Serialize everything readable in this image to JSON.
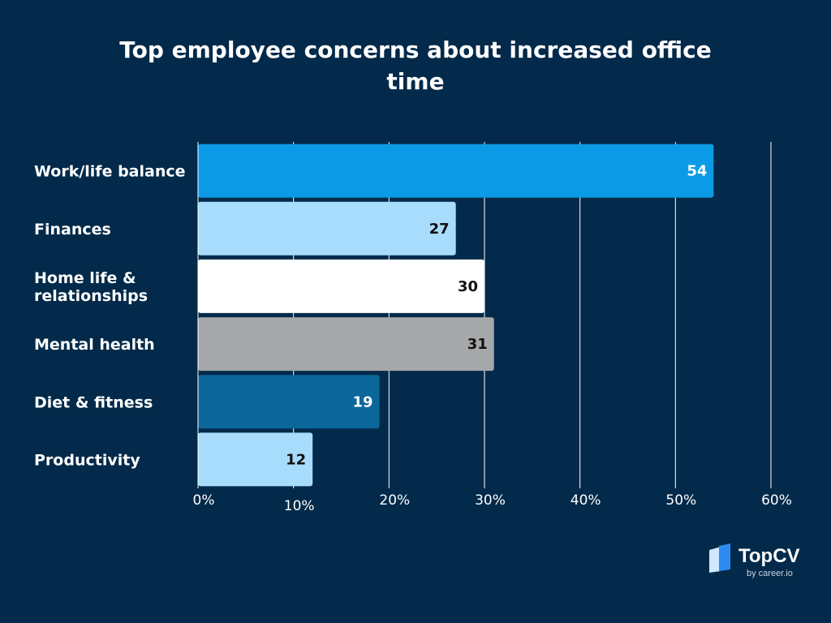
{
  "brand": {
    "name": "TopCV",
    "sub": "by career.io",
    "colors": {
      "logo_back": "#cfe8ff",
      "logo_front": "#2e8cf0"
    }
  },
  "chart_data": {
    "type": "bar",
    "orientation": "horizontal",
    "title_lines": [
      "Top employee concerns about increased office",
      "time"
    ],
    "categories": [
      [
        "Work/life balance"
      ],
      [
        "Finances"
      ],
      [
        "Home life &",
        "relationships"
      ],
      [
        "Mental health"
      ],
      [
        "Diet & fitness"
      ],
      [
        "Productivity"
      ]
    ],
    "values": [
      54,
      27,
      30,
      31,
      19,
      12
    ],
    "value_labels": [
      "54",
      "27",
      "30",
      "31",
      "19",
      "12"
    ],
    "bar_colors": [
      "#0b9be6",
      "#a8dcfc",
      "#ffffff",
      "#a6a7a9",
      "#0b6699",
      "#a8dcfc"
    ],
    "label_colors": [
      "#ffffff",
      "#111111",
      "#111111",
      "#111111",
      "#ffffff",
      "#111111"
    ],
    "x_ticks": [
      0,
      10,
      20,
      30,
      40,
      50,
      60
    ],
    "x_tick_labels": [
      "0%",
      "10%",
      "20%",
      "30%",
      "40%",
      "50%",
      "60%"
    ],
    "xlim": [
      0,
      60
    ],
    "grid": true,
    "background": "#032a4a"
  }
}
